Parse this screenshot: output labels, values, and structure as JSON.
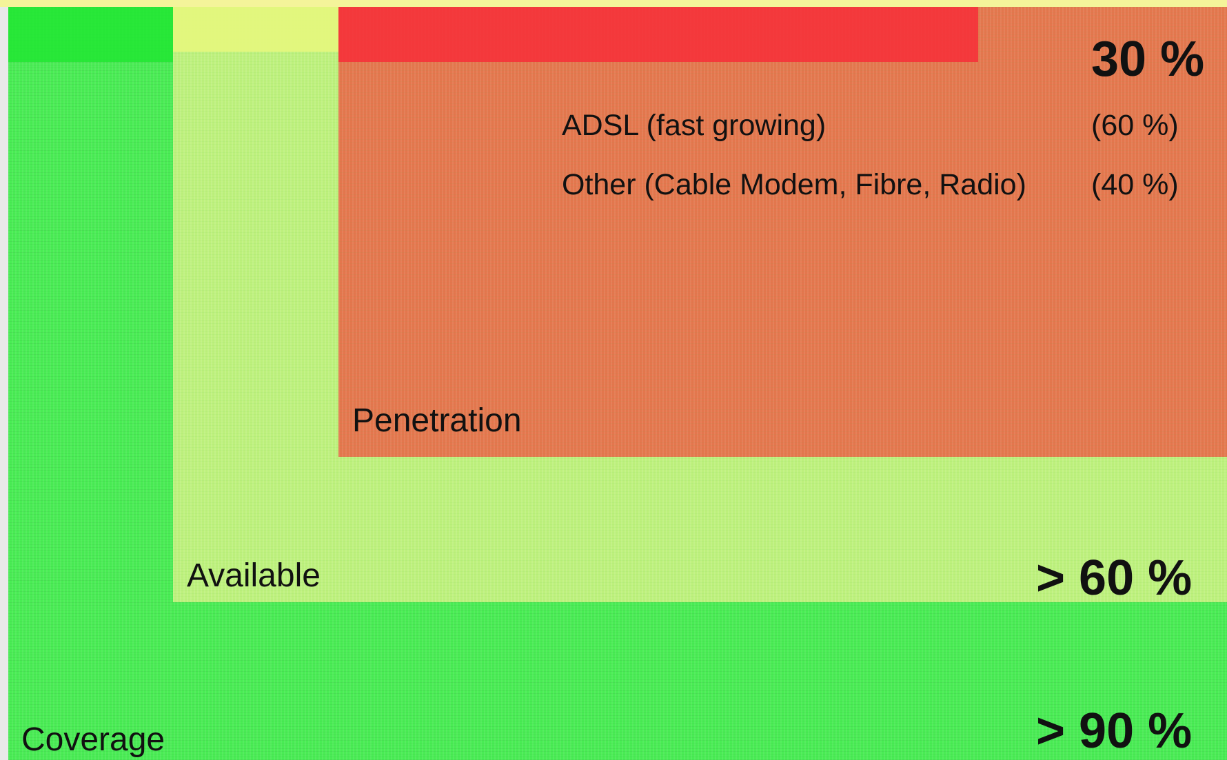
{
  "regions": {
    "coverage": {
      "name": "Coverage",
      "value": "> 90 %",
      "color": "#49ec54"
    },
    "available": {
      "name": "Available",
      "value": "> 60 %",
      "color": "#bdf07c"
    },
    "penetration": {
      "name": "Penetration",
      "value": "30 %",
      "color": "#e4764d",
      "items": [
        {
          "label": "ADSL (fast growing)",
          "share": "(60 %)"
        },
        {
          "label": "Other (Cable Modem, Fibre, Radio)",
          "share": "(40 %)"
        }
      ]
    }
  }
}
